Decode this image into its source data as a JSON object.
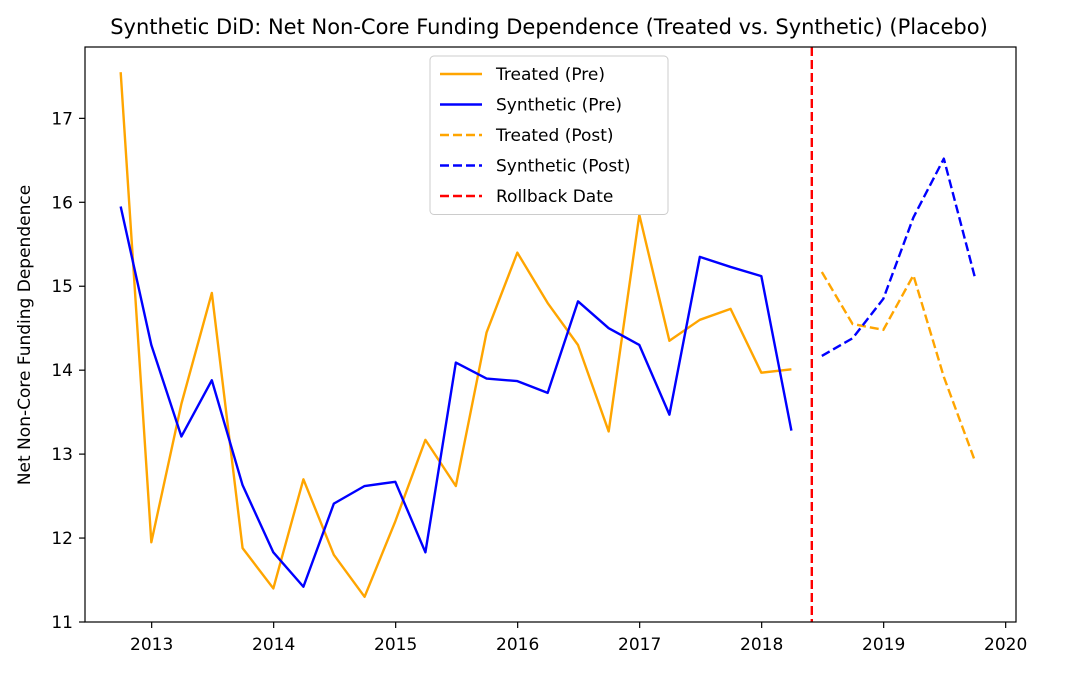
{
  "chart_data": {
    "type": "line",
    "title": "Synthetic DiD: Net Non-Core Funding Dependence (Treated vs. Synthetic) (Placebo)",
    "xlabel": "",
    "ylabel": "Net Non-Core Funding Dependence",
    "xlim": [
      "2012-06-15",
      "2020-02-01"
    ],
    "ylim": [
      11,
      17.85
    ],
    "x_ticks": [
      "2013",
      "2014",
      "2015",
      "2016",
      "2017",
      "2018",
      "2019",
      "2020"
    ],
    "y_ticks": [
      "11",
      "12",
      "13",
      "14",
      "15",
      "16",
      "17"
    ],
    "grid": false,
    "legend_position": "top-center",
    "vline": {
      "x": "2018-05-31",
      "label": "Rollback Date",
      "color": "#ff0000",
      "style": "dashed"
    },
    "series": [
      {
        "name": "Treated (Pre)",
        "color": "#ffa500",
        "style": "solid",
        "x": [
          "2012-09-30",
          "2012-12-31",
          "2013-03-31",
          "2013-06-30",
          "2013-09-30",
          "2013-12-31",
          "2014-03-31",
          "2014-06-30",
          "2014-09-30",
          "2014-12-31",
          "2015-03-31",
          "2015-06-30",
          "2015-09-30",
          "2015-12-31",
          "2016-03-31",
          "2016-06-30",
          "2016-09-30",
          "2016-12-31",
          "2017-03-31",
          "2017-06-30",
          "2017-09-30",
          "2017-12-31",
          "2018-03-31"
        ],
        "y": [
          17.55,
          11.95,
          13.6,
          14.92,
          11.88,
          11.4,
          12.7,
          11.8,
          11.3,
          12.2,
          13.17,
          12.62,
          14.45,
          15.4,
          14.8,
          14.3,
          13.27,
          15.85,
          14.35,
          14.6,
          14.73,
          13.97,
          14.01
        ]
      },
      {
        "name": "Synthetic (Pre)",
        "color": "#0000ff",
        "style": "solid",
        "x": [
          "2012-09-30",
          "2012-12-31",
          "2013-03-31",
          "2013-06-30",
          "2013-09-30",
          "2013-12-31",
          "2014-03-31",
          "2014-06-30",
          "2014-09-30",
          "2014-12-31",
          "2015-03-31",
          "2015-06-30",
          "2015-09-30",
          "2015-12-31",
          "2016-03-31",
          "2016-06-30",
          "2016-09-30",
          "2016-12-31",
          "2017-03-31",
          "2017-06-30",
          "2017-09-30",
          "2017-12-31",
          "2018-03-31"
        ],
        "y": [
          15.95,
          14.3,
          13.21,
          13.88,
          12.63,
          11.83,
          11.42,
          12.41,
          12.62,
          12.67,
          11.83,
          14.09,
          13.9,
          13.87,
          13.73,
          14.82,
          14.5,
          14.3,
          13.47,
          15.35,
          15.23,
          15.12,
          13.28
        ]
      },
      {
        "name": "Treated (Post)",
        "color": "#ffa500",
        "style": "dashed",
        "x": [
          "2018-06-30",
          "2018-09-30",
          "2018-12-31",
          "2019-03-31",
          "2019-06-30",
          "2019-09-30"
        ],
        "y": [
          15.17,
          14.55,
          14.48,
          15.13,
          13.92,
          12.93
        ]
      },
      {
        "name": "Synthetic (Post)",
        "color": "#0000ff",
        "style": "dashed",
        "x": [
          "2018-06-30",
          "2018-09-30",
          "2018-12-31",
          "2019-03-31",
          "2019-06-30",
          "2019-09-30"
        ],
        "y": [
          14.17,
          14.38,
          14.85,
          15.82,
          16.52,
          15.12
        ]
      }
    ]
  }
}
